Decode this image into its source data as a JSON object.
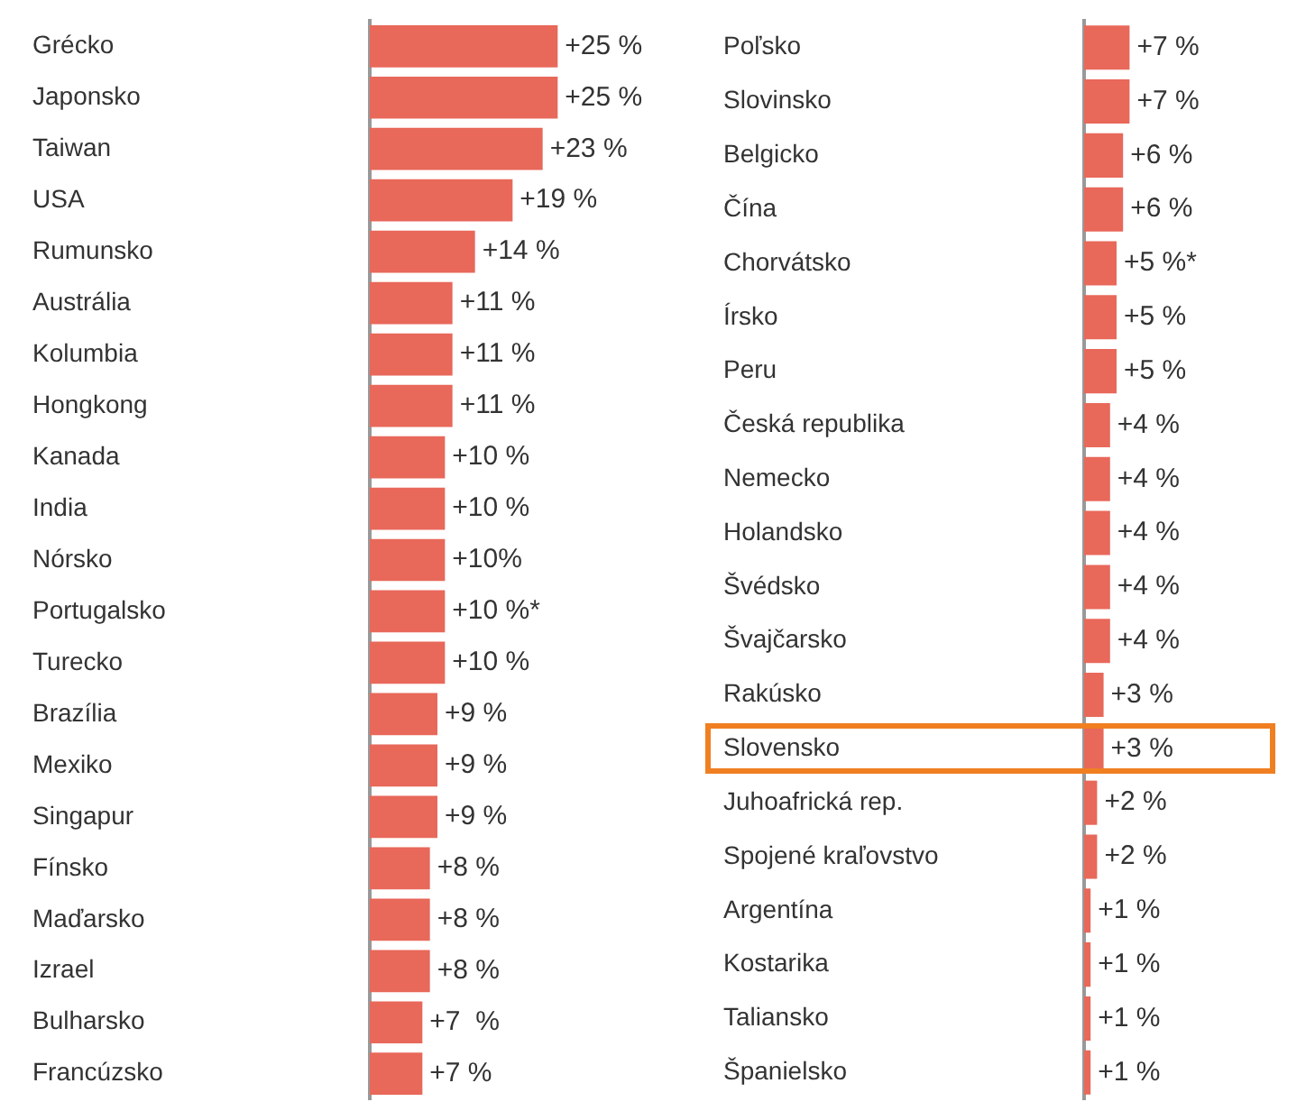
{
  "chart_data": [
    {
      "type": "bar",
      "orientation": "horizontal",
      "categories": [
        "Grécko",
        "Japonsko",
        "Taiwan",
        "USA",
        "Rumunsko",
        "Austrália",
        "Kolumbia",
        "Hongkong",
        "Kanada",
        "India",
        "Nórsko",
        "Portugalsko",
        "Turecko",
        "Brazília",
        "Mexiko",
        "Singapur",
        "Fínsko",
        "Maďarsko",
        "Izrael",
        "Bulharsko",
        "Francúzsko"
      ],
      "values": [
        25,
        25,
        23,
        19,
        14,
        11,
        11,
        11,
        10,
        10,
        10,
        10,
        10,
        9,
        9,
        9,
        8,
        8,
        8,
        7,
        7
      ],
      "value_labels": [
        "+25 %",
        "+25 %",
        "+23 %",
        "+19 %",
        "+14 %",
        "+11 %",
        "+11 %",
        "+11 %",
        "+10 %",
        "+10 %",
        "+10%",
        "+10 %*",
        "+10 %",
        "+9 %",
        "+9 %",
        "+9 %",
        "+8 %",
        "+8 %",
        "+8 %",
        "+7  %",
        "+7 %"
      ],
      "color": "#e8685a"
    },
    {
      "type": "bar",
      "orientation": "horizontal",
      "categories": [
        "Poľsko",
        "Slovinsko",
        "Belgicko",
        "Čína",
        "Chorvátsko",
        "Írsko",
        "Peru",
        "Česká republika",
        "Nemecko",
        "Holandsko",
        "Švédsko",
        "Švajčarsko",
        "Rakúsko",
        "Slovensko",
        "Juhoafrická rep.",
        "Spojené kraľovstvo",
        "Argentína",
        "Kostarika",
        "Taliansko",
        "Španielsko"
      ],
      "values": [
        7,
        7,
        6,
        6,
        5,
        5,
        5,
        4,
        4,
        4,
        4,
        4,
        3,
        3,
        2,
        2,
        1,
        1,
        1,
        1
      ],
      "value_labels": [
        "+7 %",
        "+7 %",
        "+6 %",
        "+6 %",
        "+5 %*",
        "+5 %",
        "+5 %",
        "+4 %",
        "+4 %",
        "+4 %",
        "+4 %",
        "+4 %",
        "+3 %",
        "+3 %",
        "+2 %",
        "+2 %",
        "+1 %",
        "+1 %",
        "+1 %",
        "+1 %"
      ],
      "color": "#e8685a"
    }
  ]
}
